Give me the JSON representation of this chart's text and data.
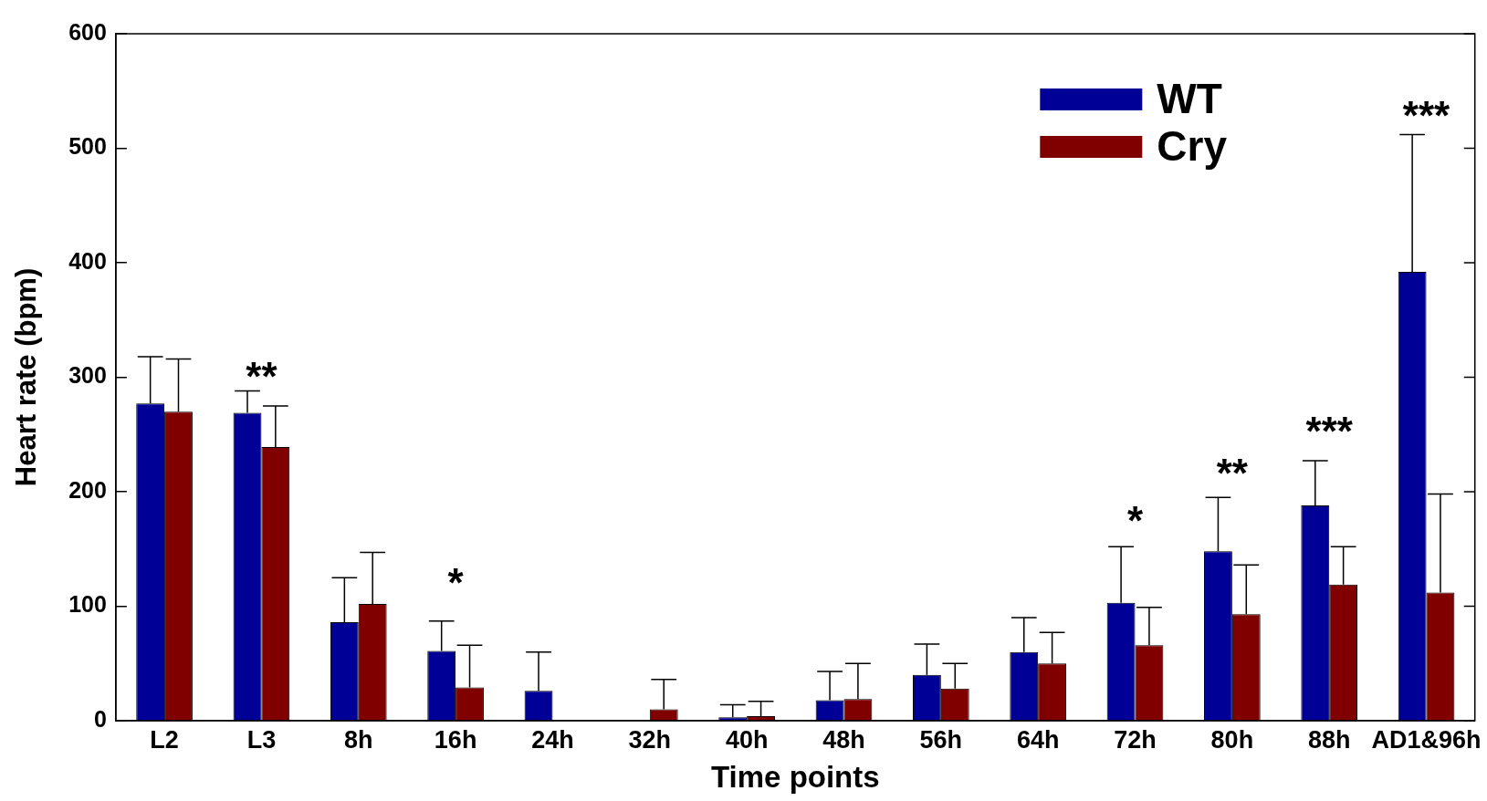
{
  "chart_data": {
    "type": "bar",
    "xlabel": "Time points",
    "ylabel": "Heart rate (bpm)",
    "categories": [
      "L2",
      "L3",
      "8h",
      "16h",
      "24h",
      "32h",
      "40h",
      "48h",
      "56h",
      "64h",
      "72h",
      "80h",
      "88h",
      "AD1&96h"
    ],
    "series": [
      {
        "name": "WT",
        "color": "#000096",
        "values": [
          277,
          269,
          86,
          61,
          26,
          0,
          3,
          18,
          40,
          60,
          103,
          148,
          188,
          392
        ],
        "errors": [
          [
            277,
            318
          ],
          [
            269,
            288
          ],
          [
            86,
            125
          ],
          [
            61,
            87
          ],
          [
            26,
            60
          ],
          null,
          [
            3,
            14
          ],
          [
            18,
            43
          ],
          [
            40,
            67
          ],
          [
            60,
            90
          ],
          [
            103,
            152
          ],
          [
            148,
            195
          ],
          [
            188,
            227
          ],
          [
            392,
            512
          ]
        ]
      },
      {
        "name": "Cry",
        "color": "#800000",
        "values": [
          270,
          239,
          102,
          29,
          0,
          10,
          4,
          19,
          28,
          50,
          66,
          93,
          119,
          112
        ],
        "errors": [
          [
            270,
            316
          ],
          [
            239,
            275
          ],
          [
            102,
            147
          ],
          [
            29,
            66
          ],
          null,
          [
            10,
            36
          ],
          [
            4,
            17
          ],
          [
            19,
            50
          ],
          [
            28,
            50
          ],
          [
            50,
            77
          ],
          [
            66,
            99
          ],
          [
            93,
            136
          ],
          [
            119,
            152
          ],
          [
            112,
            198
          ]
        ]
      }
    ],
    "ylim": [
      0,
      600
    ],
    "yticks": [
      0,
      100,
      200,
      300,
      400,
      500,
      600
    ],
    "grid": false,
    "legend": "top right",
    "annotations": [
      "**",
      "*",
      "*",
      "**",
      "***",
      "***"
    ]
  }
}
